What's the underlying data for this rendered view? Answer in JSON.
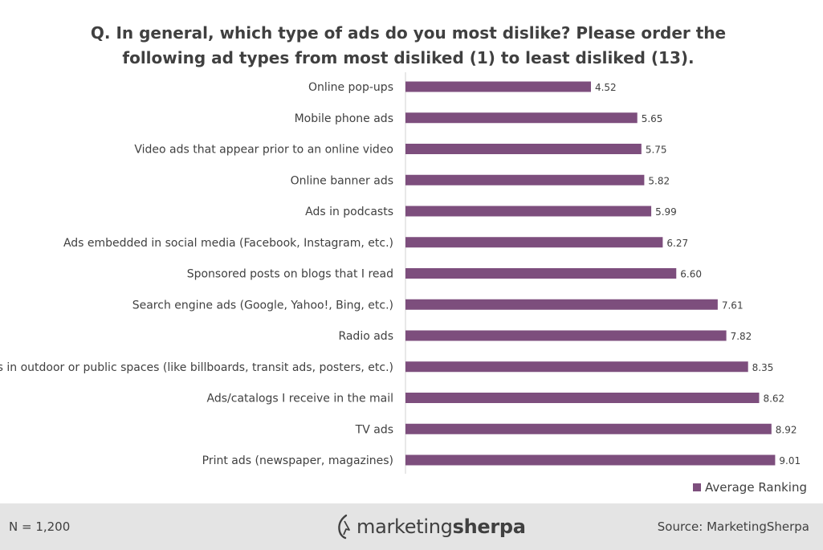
{
  "title_lines": [
    "Q. In general, which type of ads do you most dislike? Please order the",
    "following ad types from most disliked (1) to least disliked (13)."
  ],
  "chart_data": {
    "type": "bar",
    "orientation": "horizontal",
    "categories": [
      "Online pop-ups",
      "Mobile phone ads",
      "Video ads that appear prior to an online video",
      "Online banner ads",
      "Ads in podcasts",
      "Ads embedded in social media (Facebook, Instagram, etc.)",
      "Sponsored posts on blogs that I read",
      "Search engine ads (Google, Yahoo!, Bing, etc.)",
      "Radio ads",
      "Ads in outdoor or public spaces (like billboards, transit ads, posters, etc.)",
      "Ads/catalogs I receive in the mail",
      "TV ads",
      "Print ads (newspaper, magazines)"
    ],
    "series": [
      {
        "name": "Average Ranking",
        "values": [
          4.52,
          5.65,
          5.75,
          5.82,
          5.99,
          6.27,
          6.6,
          7.61,
          7.82,
          8.35,
          8.62,
          8.92,
          9.01
        ],
        "labels": [
          "4.52",
          "5.65",
          "5.75",
          "5.82",
          "5.99",
          "6.27",
          "6.60",
          "7.61",
          "7.82",
          "8.35",
          "8.62",
          "8.92",
          "9.01"
        ],
        "color": "#7d4e7d"
      }
    ],
    "xlim": [
      0,
      9.8
    ],
    "grid": false,
    "legend_position": "bottom-right"
  },
  "footer": {
    "sample": "N = 1,200",
    "logo_word_1": "marketing",
    "logo_word_2": "sherpa",
    "source": "Source: MarketingSherpa"
  }
}
